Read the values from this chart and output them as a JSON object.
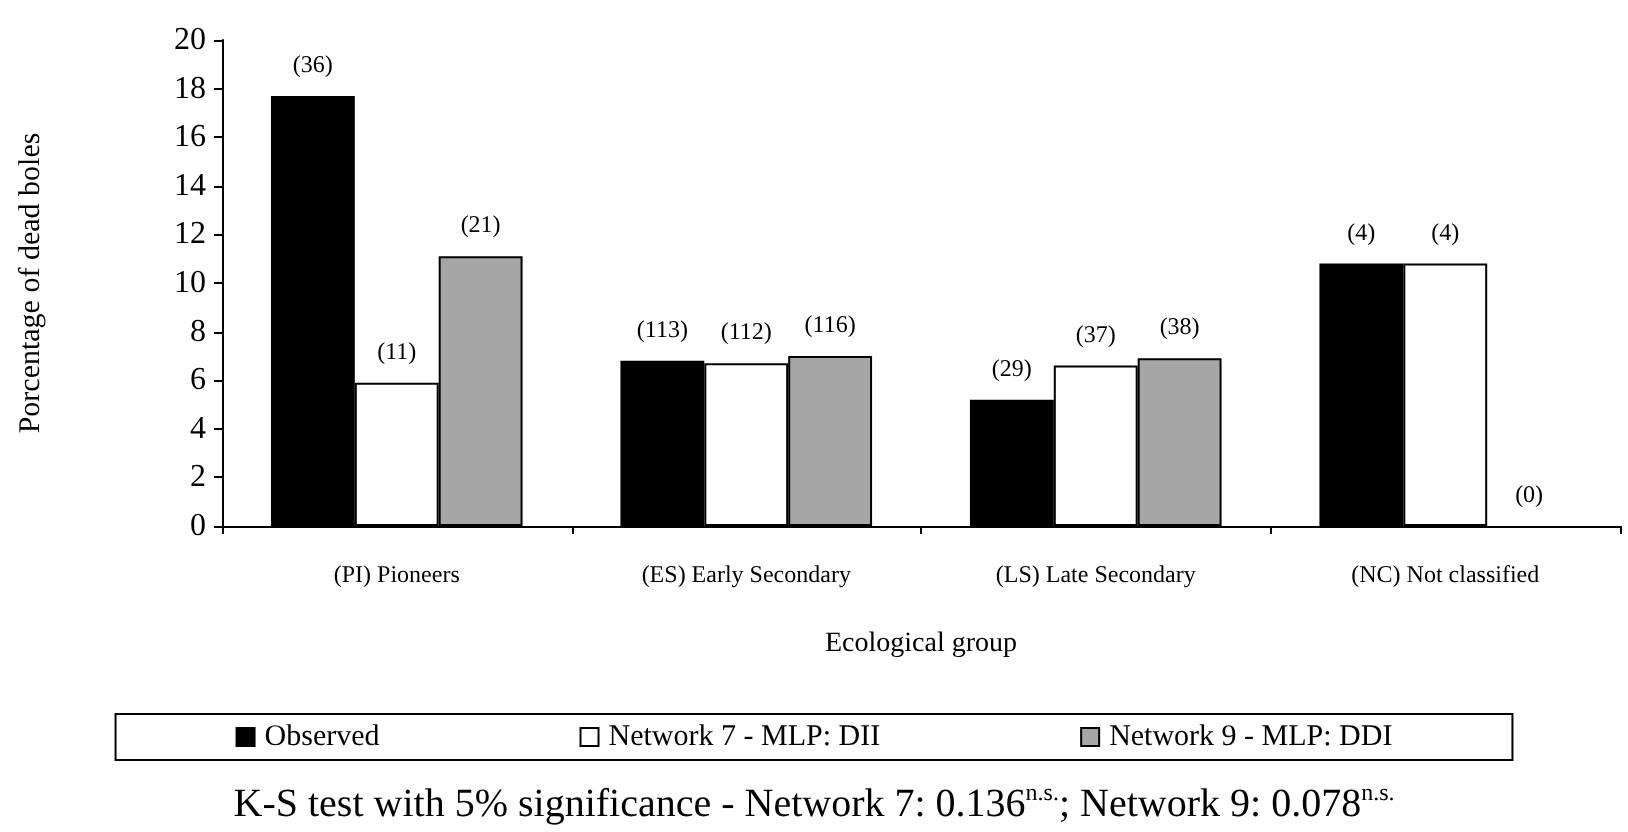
{
  "chart_data": {
    "type": "bar",
    "xlabel": "Ecological group",
    "ylabel": "Porcentage of dead boles",
    "categories": [
      "(PI) Pioneers",
      "(ES) Early Secondary",
      "(LS) Late Secondary",
      "(NC) Not classified"
    ],
    "series": [
      {
        "name": "Observed",
        "color": "#000000",
        "values": [
          17.7,
          6.8,
          5.2,
          10.8
        ]
      },
      {
        "name": "Network 7 - MLP: DII",
        "color": "#ffffff",
        "values": [
          5.9,
          6.7,
          6.6,
          10.8
        ]
      },
      {
        "name": "Network 9 - MLP: DDI",
        "color": "#a6a6a6",
        "values": [
          11.1,
          7.0,
          6.9,
          0
        ]
      }
    ],
    "ylim": [
      0,
      20
    ],
    "yticks": [
      0,
      2,
      4,
      6,
      8,
      10,
      12,
      14,
      16,
      18,
      20
    ],
    "legend": "bottom",
    "grid": false,
    "annotations": [
      "(36)",
      "(11)",
      "(21)",
      "(113)",
      "(112)",
      "(116)",
      "(29)",
      "(37)",
      "(38)",
      "(4)",
      "(4)",
      "(0)",
      "K-S test with 5% significance - Network 7: 0.136$^{n.s.}$; Network 9: 0.078$^{n.s.}$"
    ]
  }
}
